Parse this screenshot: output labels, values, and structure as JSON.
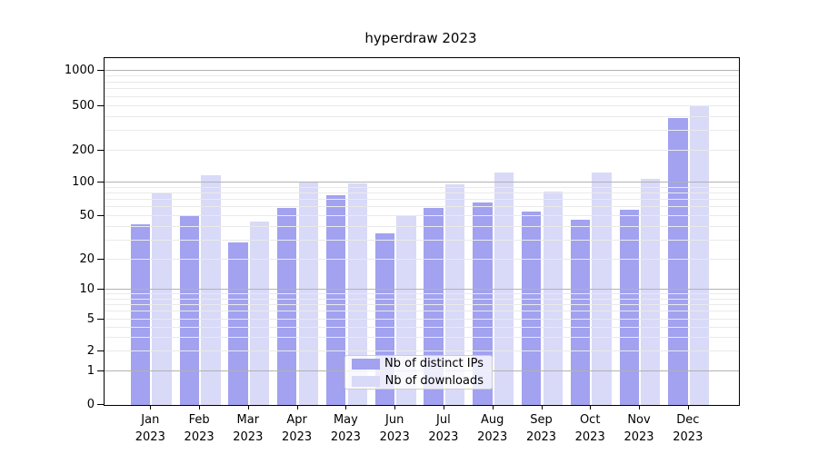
{
  "chart_data": {
    "type": "bar",
    "title": "hyperdraw 2023",
    "categories": [
      "Jan",
      "Feb",
      "Mar",
      "Apr",
      "May",
      "Jun",
      "Jul",
      "Aug",
      "Sep",
      "Oct",
      "Nov",
      "Dec"
    ],
    "category_year": "2023",
    "series": [
      {
        "name": "Nb of distinct IPs",
        "color": "#a2a2f0",
        "values": [
          42,
          51,
          29,
          59,
          77,
          35,
          59,
          67,
          55,
          46,
          57,
          390
        ]
      },
      {
        "name": "Nb of downloads",
        "color": "#d9d9f8",
        "values": [
          81,
          117,
          45,
          100,
          99,
          50,
          98,
          124,
          83,
          125,
          109,
          500
        ]
      }
    ],
    "ylabel": "",
    "xlabel": "",
    "yticks": [
      0,
      1,
      2,
      5,
      10,
      20,
      50,
      100,
      200,
      500,
      1000
    ],
    "y_scale": "symlog",
    "y_anchor_fracs": [
      [
        0,
        0.0
      ],
      [
        1,
        0.0969
      ],
      [
        2,
        0.1545
      ],
      [
        5,
        0.2461
      ],
      [
        10,
        0.3325
      ],
      [
        20,
        0.4188
      ],
      [
        50,
        0.5445
      ],
      [
        100,
        0.6403
      ],
      [
        200,
        0.733
      ],
      [
        500,
        0.8613
      ],
      [
        1000,
        0.9634
      ]
    ],
    "major_gridlines": [
      1,
      10,
      100,
      1000
    ],
    "minor_gridlines": [
      2,
      3,
      4,
      5,
      6,
      7,
      8,
      9,
      20,
      30,
      40,
      50,
      60,
      70,
      80,
      90,
      200,
      300,
      400,
      500,
      600,
      700,
      800,
      900
    ],
    "grid": "on",
    "legend_position": "lower center",
    "colors": {
      "major_grid": "#b2b2b2",
      "minor_grid": "#eaeaea",
      "spine": "#000000",
      "text": "#000000",
      "legend_border": "#cccccc"
    }
  }
}
